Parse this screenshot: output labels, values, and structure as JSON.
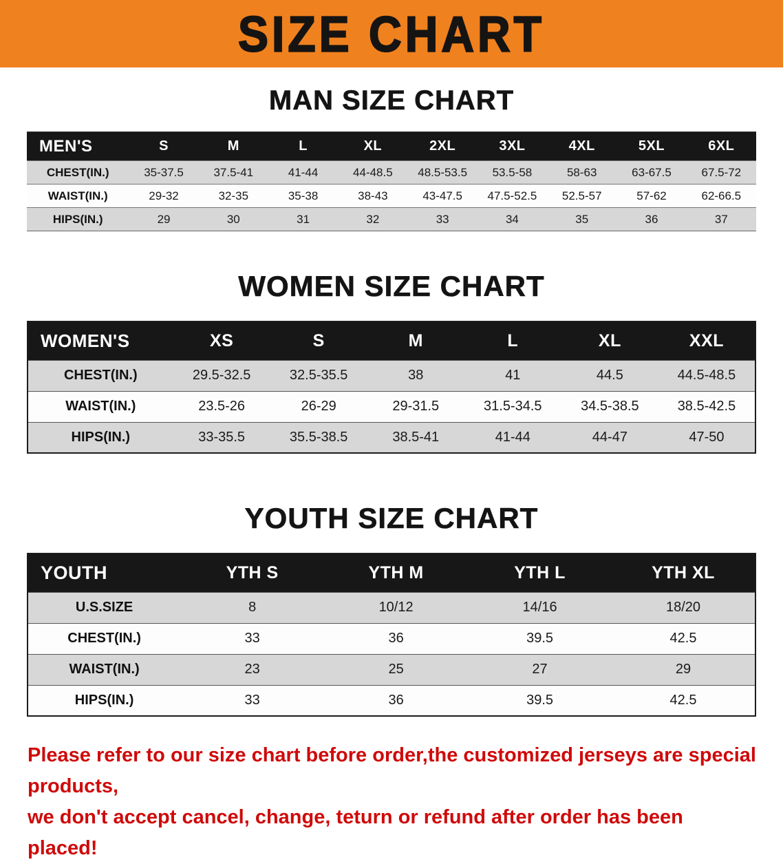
{
  "banner": {
    "title": "SIZE CHART"
  },
  "men": {
    "title": "MAN SIZE CHART",
    "header": [
      "MEN'S",
      "S",
      "M",
      "L",
      "XL",
      "2XL",
      "3XL",
      "4XL",
      "5XL",
      "6XL"
    ],
    "rows": [
      [
        "CHEST(IN.)",
        "35-37.5",
        "37.5-41",
        "41-44",
        "44-48.5",
        "48.5-53.5",
        "53.5-58",
        "58-63",
        "63-67.5",
        "67.5-72"
      ],
      [
        "WAIST(IN.)",
        "29-32",
        "32-35",
        "35-38",
        "38-43",
        "43-47.5",
        "47.5-52.5",
        "52.5-57",
        "57-62",
        "62-66.5"
      ],
      [
        "HIPS(IN.)",
        "29",
        "30",
        "31",
        "32",
        "33",
        "34",
        "35",
        "36",
        "37"
      ]
    ]
  },
  "women": {
    "title": "WOMEN SIZE CHART",
    "header": [
      "WOMEN'S",
      "XS",
      "S",
      "M",
      "L",
      "XL",
      "XXL"
    ],
    "rows": [
      [
        "CHEST(IN.)",
        "29.5-32.5",
        "32.5-35.5",
        "38",
        "41",
        "44.5",
        "44.5-48.5"
      ],
      [
        "WAIST(IN.)",
        "23.5-26",
        "26-29",
        "29-31.5",
        "31.5-34.5",
        "34.5-38.5",
        "38.5-42.5"
      ],
      [
        "HIPS(IN.)",
        "33-35.5",
        "35.5-38.5",
        "38.5-41",
        "41-44",
        "44-47",
        "47-50"
      ]
    ]
  },
  "youth": {
    "title": "YOUTH SIZE CHART",
    "header": [
      "YOUTH",
      "YTH S",
      "YTH M",
      "YTH L",
      "YTH XL"
    ],
    "rows": [
      [
        "U.S.SIZE",
        "8",
        "10/12",
        "14/16",
        "18/20"
      ],
      [
        "CHEST(IN.)",
        "33",
        "36",
        "39.5",
        "42.5"
      ],
      [
        "WAIST(IN.)",
        "23",
        "25",
        "27",
        "29"
      ],
      [
        "HIPS(IN.)",
        "33",
        "36",
        "39.5",
        "42.5"
      ]
    ]
  },
  "footer": {
    "line1": "Please refer to our size chart before order,the customized jerseys are special products,",
    "line2": "we don't accept cancel, change, teturn or refund after order has been placed!"
  },
  "colors": {
    "banner_orange": "#f0811f",
    "header_black": "#171717",
    "row_gray": "#d7d7d7",
    "row_white": "#fdfdfd",
    "footer_red": "#cf0a0a"
  }
}
